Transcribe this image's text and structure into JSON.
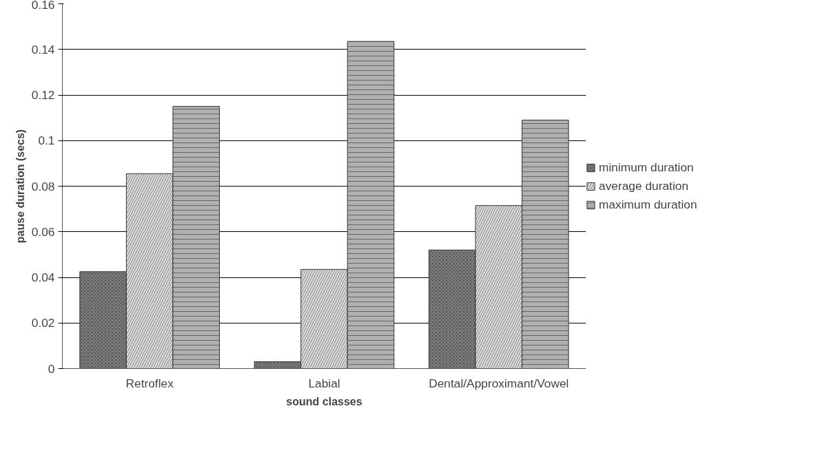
{
  "chart_data": {
    "type": "bar",
    "xlabel": "sound classes",
    "ylabel": "pause duration (secs)",
    "categories": [
      "Retroflex",
      "Labial",
      "Dental/Approximant/Vowel"
    ],
    "series": [
      {
        "name": "minimum duration",
        "color": "#808080",
        "values": [
          0.0425,
          0.003,
          0.052
        ]
      },
      {
        "name": "average duration",
        "color": "#e0e0e0",
        "values": [
          0.0855,
          0.0435,
          0.0715
        ]
      },
      {
        "name": "maximum duration",
        "color": "#b0b0b0",
        "values": [
          0.115,
          0.1435,
          0.109
        ]
      }
    ],
    "ylim": [
      0,
      0.16
    ],
    "yticks": [
      0,
      0.02,
      0.04,
      0.06,
      0.08,
      0.1,
      0.12,
      0.14,
      0.16
    ],
    "grid": "y",
    "legend": "right"
  }
}
